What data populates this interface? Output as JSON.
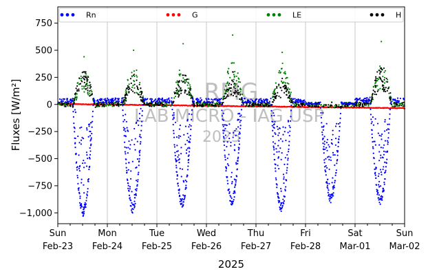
{
  "chart_data": {
    "type": "scatter",
    "title": "",
    "xlabel": "2025",
    "ylabel": "Fluxes [W/m²]",
    "ylim": [
      -1100,
      900
    ],
    "xlim": [
      "2025-02-23",
      "2025-03-02"
    ],
    "yticks": [
      750,
      500,
      250,
      0,
      -250,
      -500,
      -750,
      -1000
    ],
    "xticks": [
      {
        "date": "2025-02-23",
        "day": "Sun",
        "label": "Feb-23"
      },
      {
        "date": "2025-02-24",
        "day": "Mon",
        "label": "Feb-24"
      },
      {
        "date": "2025-02-25",
        "day": "Tue",
        "label": "Feb-25"
      },
      {
        "date": "2025-02-26",
        "day": "Wed",
        "label": "Feb-26"
      },
      {
        "date": "2025-02-27",
        "day": "Thu",
        "label": "Feb-27"
      },
      {
        "date": "2025-02-28",
        "day": "Fri",
        "label": "Feb-28"
      },
      {
        "date": "2025-03-01",
        "day": "Sat",
        "label": "Mar-01"
      },
      {
        "date": "2025-03-02",
        "day": "Sun",
        "label": "Mar-02"
      }
    ],
    "grid": "vertical",
    "legend_position": "top",
    "watermark": [
      "RMG",
      "LAB MICRO - IAG USP",
      "2025"
    ],
    "series": [
      {
        "name": "Rn",
        "color": "#0000ff",
        "daily": [
          {
            "date": "2025-02-23",
            "night": 55,
            "min": -1030
          },
          {
            "date": "2025-02-24",
            "night": 60,
            "min": -1000
          },
          {
            "date": "2025-02-25",
            "night": 60,
            "min": -945
          },
          {
            "date": "2025-02-26",
            "night": 55,
            "min": -925
          },
          {
            "date": "2025-02-27",
            "night": 55,
            "min": -985
          },
          {
            "date": "2025-02-28",
            "night": 20,
            "min": -905
          },
          {
            "date": "2025-03-01",
            "night": 65,
            "min": -920
          },
          {
            "date": "2025-03-02",
            "night": 70,
            "min": null
          }
        ]
      },
      {
        "name": "G",
        "color": "#ff0000",
        "start": 5,
        "end": -35
      },
      {
        "name": "LE",
        "color": "#008000",
        "daily": [
          {
            "date": "2025-02-23",
            "peak": 280,
            "max": 440
          },
          {
            "date": "2025-02-24",
            "peak": 300,
            "max": 500
          },
          {
            "date": "2025-02-25",
            "peak": 320,
            "max": 560
          },
          {
            "date": "2025-02-26",
            "peak": 350,
            "max": 640
          },
          {
            "date": "2025-02-27",
            "peak": 330,
            "max": 480
          },
          {
            "date": "2025-02-28",
            "peak": 0,
            "max": 20
          },
          {
            "date": "2025-03-01",
            "peak": 320,
            "max": 580
          }
        ]
      },
      {
        "name": "H",
        "color": "#000000",
        "daily": [
          {
            "date": "2025-02-23",
            "peak": 280,
            "max": 300
          },
          {
            "date": "2025-02-24",
            "peak": 240,
            "max": 270
          },
          {
            "date": "2025-02-25",
            "peak": 250,
            "max": 270
          },
          {
            "date": "2025-02-26",
            "peak": 200,
            "max": 300
          },
          {
            "date": "2025-02-27",
            "peak": 190,
            "max": 240
          },
          {
            "date": "2025-02-28",
            "peak": 0,
            "max": 20
          },
          {
            "date": "2025-03-01",
            "peak": 320,
            "max": 335
          }
        ]
      }
    ]
  }
}
